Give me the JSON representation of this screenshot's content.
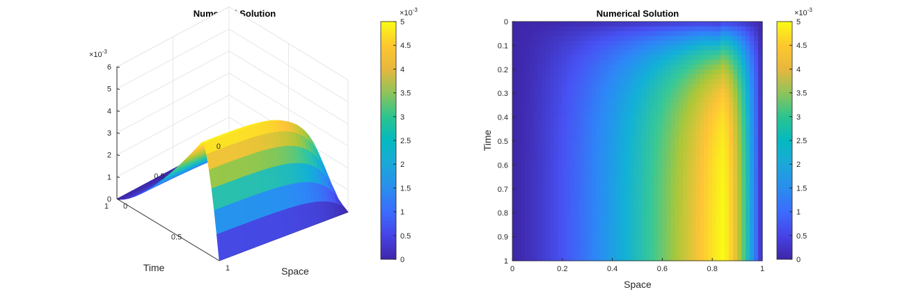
{
  "chart_data": [
    {
      "type": "surface",
      "title": "Numerical Solution",
      "xlabel": "Space",
      "ylabel": "Time",
      "zlabel": "",
      "xlim": [
        0,
        1
      ],
      "ylim": [
        0,
        1
      ],
      "zlim": [
        0,
        6
      ],
      "z_multiplier": "×10",
      "z_exponent": "-3",
      "x_ticks": [
        "0",
        "0.5",
        "1"
      ],
      "y_ticks": [
        "0",
        "0.5",
        "1"
      ],
      "z_ticks": [
        "0",
        "1",
        "2",
        "3",
        "4",
        "5",
        "6"
      ],
      "corner_values": {
        "space0_time0": 0,
        "space0_time1": 0,
        "space1_time0": 0,
        "space1_time1": 0,
        "space0.85_time1": 5.0
      },
      "colormap": "parula",
      "colorbar": {
        "range": [
          0,
          5
        ],
        "ticks": [
          "0",
          "0.5",
          "1",
          "1.5",
          "2",
          "2.5",
          "3",
          "3.5",
          "4",
          "4.5",
          "5"
        ],
        "multiplier": "×10",
        "exponent": "-3"
      }
    },
    {
      "type": "heatmap",
      "title": "Numerical Solution",
      "xlabel": "Space",
      "ylabel": "Time",
      "xlim": [
        0,
        1
      ],
      "ylim": [
        0,
        1
      ],
      "x_ticks": [
        "0",
        "0.2",
        "0.4",
        "0.6",
        "0.8",
        "1"
      ],
      "y_ticks": [
        "0",
        "0.1",
        "0.2",
        "0.3",
        "0.4",
        "0.5",
        "0.6",
        "0.7",
        "0.8",
        "0.9",
        "1"
      ],
      "y_reversed": true,
      "peak": {
        "space": 0.84,
        "time": 1.0,
        "value": 5.0
      },
      "colormap": "parula",
      "colorbar": {
        "range": [
          0,
          5
        ],
        "ticks": [
          "0",
          "0.5",
          "1",
          "1.5",
          "2",
          "2.5",
          "3",
          "3.5",
          "4",
          "4.5",
          "5"
        ],
        "multiplier": "×10",
        "exponent": "-3"
      }
    }
  ]
}
